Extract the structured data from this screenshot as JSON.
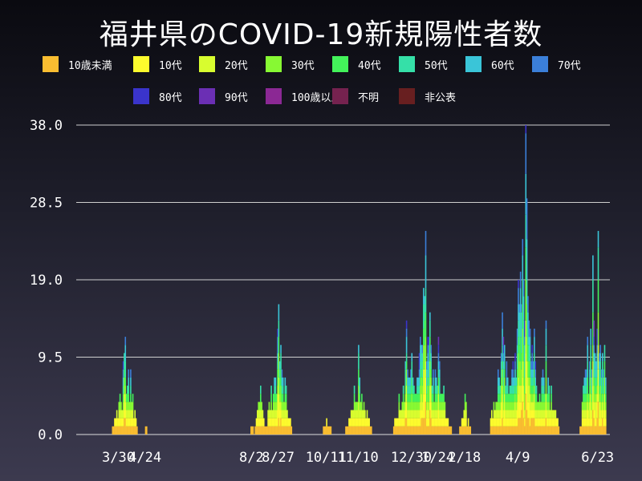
{
  "title": "福井県のCOVID-19新規陽性者数",
  "legend": [
    {
      "label": "10歳未満",
      "color": "#f9bd31"
    },
    {
      "label": "10代",
      "color": "#fdfb2d"
    },
    {
      "label": "20代",
      "color": "#d8fd2f"
    },
    {
      "label": "30代",
      "color": "#87f933"
    },
    {
      "label": "40代",
      "color": "#43f35a"
    },
    {
      "label": "50代",
      "color": "#35e0a8"
    },
    {
      "label": "60代",
      "color": "#3ac5d8"
    },
    {
      "label": "70代",
      "color": "#3b7fd9"
    },
    {
      "label": "80代",
      "color": "#3a34cb"
    },
    {
      "label": "90代",
      "color": "#6b2fb4"
    },
    {
      "label": "100歳以上",
      "color": "#8b2894"
    },
    {
      "label": "不明",
      "color": "#75224f"
    },
    {
      "label": "非公表",
      "color": "#681f20"
    }
  ],
  "chart_data": {
    "type": "bar",
    "stacked": true,
    "title": "福井県のCOVID-19新規陽性者数",
    "ylim": [
      0,
      38
    ],
    "yticks": [
      "0.0",
      "9.5",
      "19.0",
      "28.5",
      "38.0"
    ],
    "grid": true,
    "xtick_labels": [
      "3/30",
      "4/24",
      "8/2",
      "8/27",
      "10/11",
      "11/10",
      "12/30",
      "1/24",
      "2/18",
      "4/9",
      "6/23"
    ],
    "series_names": [
      "10歳未満",
      "10代",
      "20代",
      "30代",
      "40代",
      "50代",
      "60代",
      "70代",
      "80代",
      "90代",
      "100歳以上",
      "不明",
      "非公表"
    ],
    "daily_totals": [
      {
        "date": "3/30",
        "value": 3
      },
      {
        "date": "4/5",
        "value": 12
      },
      {
        "date": "4/10",
        "value": 8
      },
      {
        "date": "4/24",
        "value": 1
      },
      {
        "date": "8/2",
        "value": 1
      },
      {
        "date": "8/10",
        "value": 6
      },
      {
        "date": "8/27",
        "value": 16
      },
      {
        "date": "10/11",
        "value": 2
      },
      {
        "date": "11/10",
        "value": 11
      },
      {
        "date": "12/25",
        "value": 14
      },
      {
        "date": "12/30",
        "value": 10
      },
      {
        "date": "1/12",
        "value": 25
      },
      {
        "date": "1/24",
        "value": 12
      },
      {
        "date": "2/18",
        "value": 5
      },
      {
        "date": "3/25",
        "value": 15
      },
      {
        "date": "4/9",
        "value": 19
      },
      {
        "date": "4/16",
        "value": 38
      },
      {
        "date": "5/5",
        "value": 14
      },
      {
        "date": "6/18",
        "value": 22
      },
      {
        "date": "6/23",
        "value": 25
      }
    ]
  }
}
